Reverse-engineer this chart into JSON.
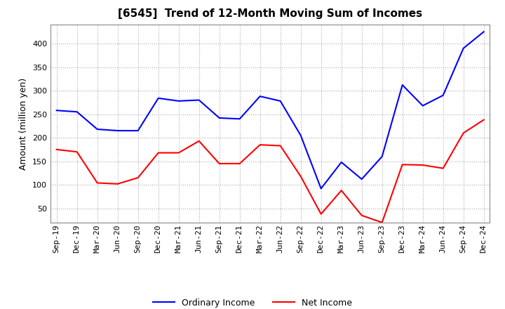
{
  "title": "[6545]  Trend of 12-Month Moving Sum of Incomes",
  "ylabel": "Amount (million yen)",
  "ylim": [
    20,
    440
  ],
  "yticks": [
    50,
    100,
    150,
    200,
    250,
    300,
    350,
    400
  ],
  "x_labels": [
    "Sep-19",
    "Dec-19",
    "Mar-20",
    "Jun-20",
    "Sep-20",
    "Dec-20",
    "Mar-21",
    "Jun-21",
    "Sep-21",
    "Dec-21",
    "Mar-22",
    "Jun-22",
    "Sep-22",
    "Dec-22",
    "Mar-23",
    "Jun-23",
    "Sep-23",
    "Dec-23",
    "Mar-24",
    "Jun-24",
    "Sep-24",
    "Dec-24"
  ],
  "ordinary_income": [
    258,
    255,
    218,
    215,
    215,
    284,
    278,
    280,
    242,
    240,
    288,
    278,
    205,
    92,
    148,
    112,
    160,
    312,
    268,
    290,
    390,
    425
  ],
  "net_income": [
    175,
    170,
    104,
    102,
    115,
    168,
    168,
    193,
    145,
    145,
    185,
    183,
    118,
    38,
    88,
    35,
    20,
    143,
    142,
    135,
    210,
    238
  ],
  "ordinary_color": "#0000ff",
  "net_color": "#ff0000",
  "grid_color": "#aaaaaa",
  "background_color": "#ffffff",
  "title_fontsize": 11,
  "axis_fontsize": 9,
  "tick_fontsize": 8,
  "legend_fontsize": 9
}
